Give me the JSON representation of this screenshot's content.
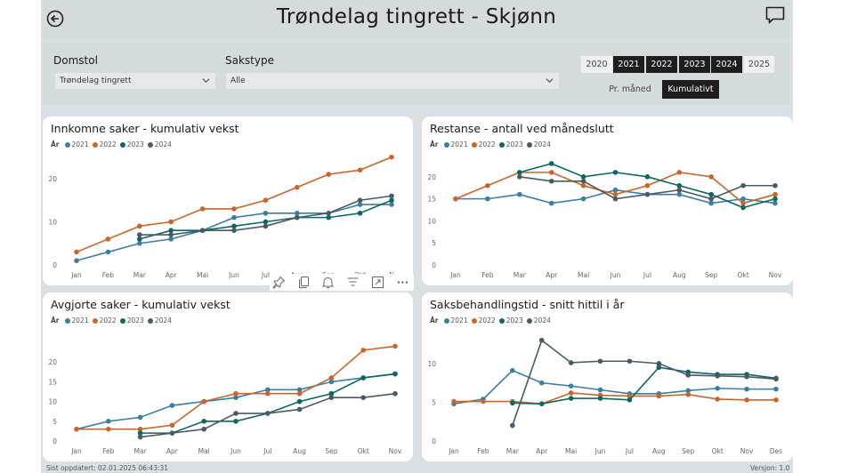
{
  "header": {
    "title": "Trøndelag tingrett - Skjønn"
  },
  "filters": {
    "domstol_label": "Domstol",
    "domstol_value": "Trøndelag tingrett",
    "sakstype_label": "Sakstype",
    "sakstype_value": "Alle",
    "years": [
      {
        "label": "2020",
        "selected": false
      },
      {
        "label": "2021",
        "selected": true
      },
      {
        "label": "2022",
        "selected": true
      },
      {
        "label": "2023",
        "selected": true
      },
      {
        "label": "2024",
        "selected": true
      },
      {
        "label": "2025",
        "selected": false
      }
    ],
    "modes": [
      {
        "label": "Pr. måned",
        "selected": false
      },
      {
        "label": "Kumulativt",
        "selected": true
      }
    ]
  },
  "legend_title": "År",
  "series_colors": {
    "2021": "#3b7ea1",
    "2022": "#c8652c",
    "2023": "#0f6660",
    "2024": "#4a5a62"
  },
  "footer": {
    "updated": "Sist oppdatert: 02.01.2025 06:43:31",
    "version": "Versjon: 1.0"
  },
  "chart_data": [
    {
      "type": "line",
      "title": "Innkomne saker - kumulativ vekst",
      "x": [
        "Jan",
        "Feb",
        "Mar",
        "Apr",
        "Mai",
        "Jun",
        "Jul",
        "Aug",
        "Sep",
        "Okt",
        "N"
      ],
      "yticks": [
        0,
        10,
        20
      ],
      "ylim": [
        0,
        27
      ],
      "series": [
        {
          "name": "2021",
          "values": [
            1,
            3,
            5,
            6,
            8,
            11,
            12,
            12,
            12,
            14,
            14
          ]
        },
        {
          "name": "2022",
          "values": [
            3,
            6,
            9,
            10,
            13,
            13,
            15,
            18,
            21,
            22,
            25
          ]
        },
        {
          "name": "2023",
          "values": [
            null,
            null,
            6,
            8,
            8,
            9,
            10,
            11,
            11,
            12,
            15
          ]
        },
        {
          "name": "2024",
          "values": [
            null,
            null,
            7,
            7,
            8,
            8,
            9,
            11,
            12,
            15,
            16
          ]
        }
      ]
    },
    {
      "type": "line",
      "title": "Restanse - antall ved månedslutt",
      "x": [
        "Jan",
        "Feb",
        "Mar",
        "Apr",
        "Mai",
        "Jun",
        "Jul",
        "Aug",
        "Sep",
        "Okt",
        "Nov"
      ],
      "yticks": [
        0,
        5,
        10,
        15,
        20
      ],
      "ylim": [
        0,
        24
      ],
      "series": [
        {
          "name": "2021",
          "values": [
            15,
            15,
            16,
            14,
            15,
            17,
            16,
            16,
            14,
            15,
            14
          ]
        },
        {
          "name": "2022",
          "values": [
            15,
            18,
            21,
            21,
            18,
            16,
            18,
            21,
            20,
            14,
            16
          ]
        },
        {
          "name": "2023",
          "values": [
            null,
            null,
            21,
            23,
            20,
            21,
            20,
            18,
            16,
            13,
            15
          ]
        },
        {
          "name": "2024",
          "values": [
            null,
            null,
            20,
            19,
            19,
            15,
            16,
            17,
            15,
            18,
            18
          ]
        }
      ]
    },
    {
      "type": "line",
      "title": "Avgjorte saker - kumulativ vekst",
      "x": [
        "Jan",
        "Feb",
        "Mar",
        "Apr",
        "Mai",
        "Jun",
        "Jul",
        "Aug",
        "Sep",
        "Okt",
        "Nov"
      ],
      "yticks": [
        0,
        5,
        10,
        15,
        20
      ],
      "ylim": [
        0,
        25
      ],
      "series": [
        {
          "name": "2021",
          "values": [
            3,
            5,
            6,
            9,
            10,
            11,
            13,
            13,
            15,
            16,
            17
          ]
        },
        {
          "name": "2022",
          "values": [
            3,
            3,
            3,
            4,
            10,
            12,
            12,
            12,
            16,
            23,
            24
          ]
        },
        {
          "name": "2023",
          "values": [
            null,
            null,
            2,
            2,
            5,
            5,
            7,
            10,
            12,
            16,
            17
          ]
        },
        {
          "name": "2024",
          "values": [
            null,
            null,
            1,
            2,
            3,
            7,
            7,
            8,
            11,
            11,
            12
          ]
        }
      ]
    },
    {
      "type": "line",
      "title": "Saksbehandlingstid - snitt hittil i år",
      "x": [
        "Jan",
        "Feb",
        "Mar",
        "Apr",
        "Mai",
        "Jun",
        "Jul",
        "Aug",
        "Sep",
        "Okt",
        "Nov",
        "Des"
      ],
      "yticks": [
        0,
        5,
        10
      ],
      "ylim": [
        0,
        14
      ],
      "series": [
        {
          "name": "2021",
          "values": [
            4.8,
            5.4,
            9.1,
            7.5,
            7.1,
            6.6,
            6.1,
            6.1,
            6.5,
            6.8,
            6.7,
            6.7
          ]
        },
        {
          "name": "2022",
          "values": [
            5.1,
            5.1,
            5.1,
            4.8,
            6.2,
            5.9,
            5.8,
            5.8,
            6.0,
            5.4,
            5.3,
            5.3
          ]
        },
        {
          "name": "2023",
          "values": [
            null,
            null,
            4.9,
            4.8,
            5.5,
            5.5,
            5.3,
            9.5,
            8.9,
            8.6,
            8.6,
            8.1
          ]
        },
        {
          "name": "2024",
          "values": [
            null,
            null,
            2.0,
            13.0,
            10.1,
            10.3,
            10.3,
            10.0,
            8.5,
            8.4,
            8.3,
            8.0
          ]
        }
      ]
    }
  ]
}
